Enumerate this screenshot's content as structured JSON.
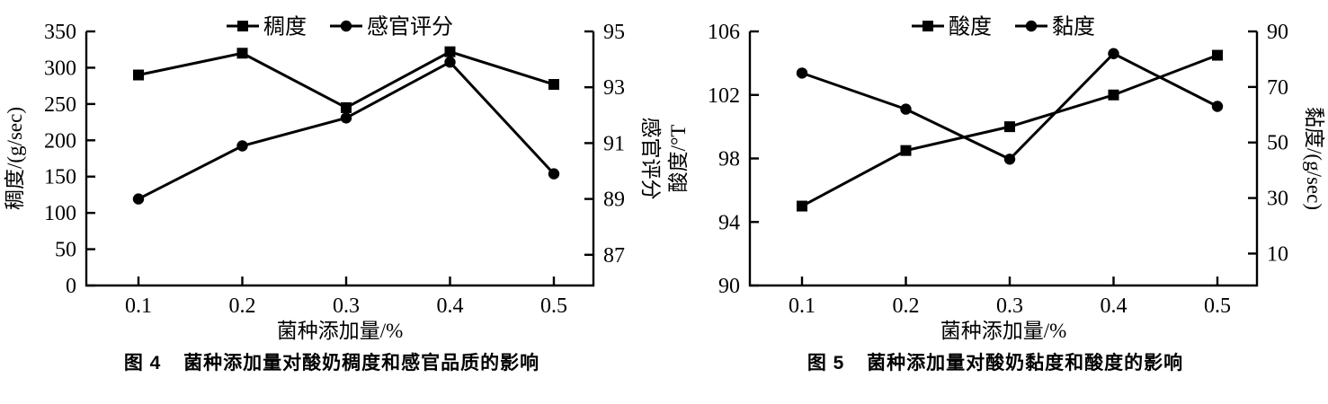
{
  "page": {
    "background": "#ffffff",
    "ink_color": "#000000"
  },
  "chart_data": [
    {
      "type": "line",
      "caption_label": "图 4",
      "caption_text": "菌种添加量对酸奶稠度和感官品质的影响",
      "x": [
        0.1,
        0.2,
        0.3,
        0.4,
        0.5
      ],
      "x_ticklabels": [
        "0.1",
        "0.2",
        "0.3",
        "0.4",
        "0.5"
      ],
      "xlabel": "菌种添加量/%",
      "grid": false,
      "legend_position": "top-center",
      "axes": {
        "left": {
          "label": "稠度/(g/sec)",
          "ylim": [
            0,
            350
          ],
          "ticks": [
            0,
            50,
            100,
            150,
            200,
            250,
            300,
            350
          ],
          "tick_labels": [
            "0",
            "50",
            "100",
            "150",
            "200",
            "250",
            "300",
            "350"
          ]
        },
        "right": {
          "label": "感官评分",
          "ylim": [
            85.9,
            95.0
          ],
          "ticks": [
            87,
            89,
            91,
            93,
            95
          ],
          "tick_labels": [
            "87",
            "89",
            "91",
            "93",
            "95"
          ]
        }
      },
      "series": [
        {
          "name": "稠度",
          "axis": "left",
          "marker": "square",
          "color": "#000000",
          "values": [
            290,
            320,
            245,
            322,
            277
          ]
        },
        {
          "name": "感官评分",
          "axis": "right",
          "marker": "circle",
          "color": "#000000",
          "values": [
            89.0,
            90.9,
            91.9,
            93.9,
            89.9
          ]
        }
      ]
    },
    {
      "type": "line",
      "caption_label": "图 5",
      "caption_text": "菌种添加量对酸奶黏度和酸度的影响",
      "x": [
        0.1,
        0.2,
        0.3,
        0.4,
        0.5
      ],
      "x_ticklabels": [
        "0.1",
        "0.2",
        "0.3",
        "0.4",
        "0.5"
      ],
      "xlabel": "菌种添加量/%",
      "grid": false,
      "legend_position": "top-center",
      "axes": {
        "left": {
          "label": "酸度/°T",
          "ylim": [
            90,
            106
          ],
          "ticks": [
            90,
            94,
            98,
            102,
            106
          ],
          "tick_labels": [
            "90",
            "94",
            "98",
            "102",
            "106"
          ]
        },
        "right": {
          "label": "黏度/(g/sec)",
          "ylim": [
            -1.5,
            90
          ],
          "ticks": [
            10,
            30,
            50,
            70,
            90
          ],
          "tick_labels": [
            "10",
            "30",
            "50",
            "70",
            "90"
          ]
        }
      },
      "series": [
        {
          "name": "酸度",
          "axis": "left",
          "marker": "square",
          "color": "#000000",
          "values": [
            95,
            98.5,
            100,
            102,
            104.5
          ]
        },
        {
          "name": "黏度",
          "axis": "right",
          "marker": "circle",
          "color": "#000000",
          "values": [
            75,
            62,
            44,
            82,
            63
          ]
        }
      ]
    }
  ]
}
